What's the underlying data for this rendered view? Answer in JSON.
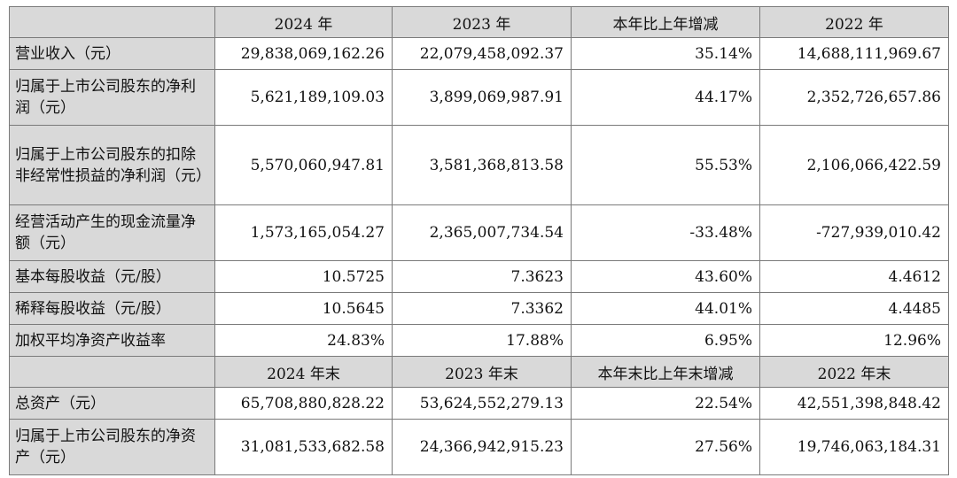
{
  "header_annual": [
    "2024 年",
    "2023 年",
    "本年比上年增减",
    "2022 年"
  ],
  "header_yearend": [
    "2024 年末",
    "2023 年末",
    "本年末比上年末增减",
    "2022 年末"
  ],
  "rows_annual": [
    {
      "label": "营业收入（元）",
      "values": [
        "29,838,069,162.26",
        "22,079,458,092.37",
        "35.14%",
        "14,688,111,969.67"
      ]
    },
    {
      "label": "归属于上市公司股东的净利润（元）",
      "values": [
        "5,621,189,109.03",
        "3,899,069,987.91",
        "44.17%",
        "2,352,726,657.86"
      ]
    },
    {
      "label": "归属于上市公司股东的扣除非经常性损益的净利润（元）",
      "values": [
        "5,570,060,947.81",
        "3,581,368,813.58",
        "55.53%",
        "2,106,066,422.59"
      ]
    },
    {
      "label": "经营活动产生的现金流量净额（元）",
      "values": [
        "1,573,165,054.27",
        "2,365,007,734.54",
        "-33.48%",
        "-727,939,010.42"
      ]
    },
    {
      "label": "基本每股收益（元/股）",
      "values": [
        "10.5725",
        "7.3623",
        "43.60%",
        "4.4612"
      ]
    },
    {
      "label": "稀释每股收益（元/股）",
      "values": [
        "10.5645",
        "7.3362",
        "44.01%",
        "4.4485"
      ]
    },
    {
      "label": "加权平均净资产收益率",
      "values": [
        "24.83%",
        "17.88%",
        "6.95%",
        "12.96%"
      ]
    }
  ],
  "rows_yearend": [
    {
      "label": "总资产（元）",
      "values": [
        "65,708,880,828.22",
        "53,624,552,279.13",
        "22.54%",
        "42,551,398,848.42"
      ]
    },
    {
      "label": "归属于上市公司股东的净资产（元）",
      "values": [
        "31,081,533,682.58",
        "24,366,942,915.23",
        "27.56%",
        "19,746,063,184.31"
      ]
    }
  ]
}
